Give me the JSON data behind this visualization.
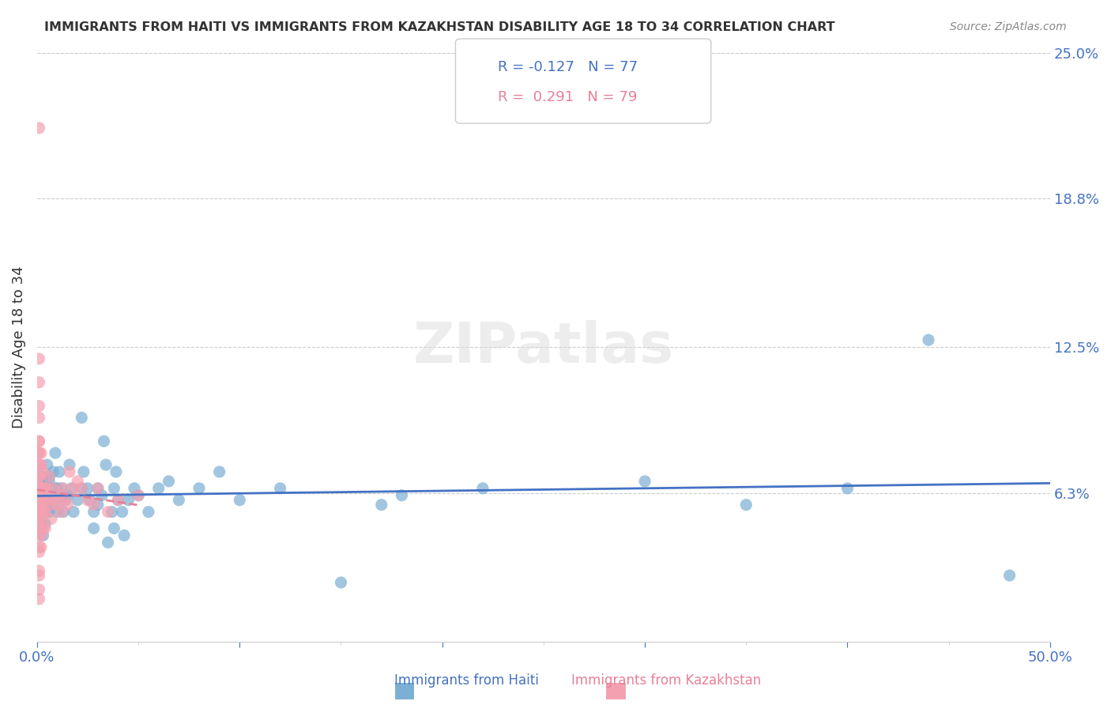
{
  "title": "IMMIGRANTS FROM HAITI VS IMMIGRANTS FROM KAZAKHSTAN DISABILITY AGE 18 TO 34 CORRELATION CHART",
  "source": "Source: ZipAtlas.com",
  "xlabel": "",
  "ylabel": "Disability Age 18 to 34",
  "xlim": [
    0,
    0.5
  ],
  "ylim": [
    0,
    0.25
  ],
  "xticks": [
    0.0,
    0.5
  ],
  "xticklabels": [
    "0.0%",
    "50.0%"
  ],
  "yticks_right": [
    0.0,
    0.063,
    0.125,
    0.188,
    0.25
  ],
  "yticklabels_right": [
    "",
    "6.3%",
    "12.5%",
    "18.8%",
    "25.0%"
  ],
  "legend_r_haiti": "-0.127",
  "legend_n_haiti": "77",
  "legend_r_kazakh": "0.291",
  "legend_n_kazakh": "79",
  "haiti_color": "#7BAFD4",
  "kazakh_color": "#F4A0B0",
  "haiti_line_color": "#4472C4",
  "kazakh_line_color": "#E88098",
  "watermark": "ZIPatlas",
  "background_color": "#FFFFFF",
  "haiti_x": [
    0.001,
    0.002,
    0.002,
    0.002,
    0.003,
    0.003,
    0.003,
    0.003,
    0.003,
    0.004,
    0.004,
    0.004,
    0.004,
    0.005,
    0.005,
    0.005,
    0.006,
    0.006,
    0.006,
    0.007,
    0.007,
    0.008,
    0.008,
    0.009,
    0.009,
    0.01,
    0.01,
    0.011,
    0.012,
    0.012,
    0.013,
    0.014,
    0.015,
    0.016,
    0.017,
    0.018,
    0.02,
    0.022,
    0.022,
    0.023,
    0.025,
    0.026,
    0.028,
    0.028,
    0.03,
    0.03,
    0.032,
    0.033,
    0.034,
    0.035,
    0.037,
    0.038,
    0.038,
    0.039,
    0.04,
    0.042,
    0.043,
    0.045,
    0.048,
    0.05,
    0.055,
    0.06,
    0.065,
    0.07,
    0.08,
    0.09,
    0.1,
    0.12,
    0.15,
    0.17,
    0.18,
    0.22,
    0.3,
    0.35,
    0.4,
    0.44,
    0.48
  ],
  "haiti_y": [
    0.063,
    0.07,
    0.05,
    0.055,
    0.055,
    0.06,
    0.045,
    0.065,
    0.07,
    0.058,
    0.05,
    0.065,
    0.06,
    0.055,
    0.065,
    0.075,
    0.068,
    0.055,
    0.07,
    0.065,
    0.06,
    0.058,
    0.072,
    0.065,
    0.08,
    0.065,
    0.055,
    0.072,
    0.06,
    0.065,
    0.055,
    0.06,
    0.062,
    0.075,
    0.065,
    0.055,
    0.06,
    0.095,
    0.065,
    0.072,
    0.065,
    0.06,
    0.055,
    0.048,
    0.065,
    0.058,
    0.062,
    0.085,
    0.075,
    0.042,
    0.055,
    0.065,
    0.048,
    0.072,
    0.06,
    0.055,
    0.045,
    0.06,
    0.065,
    0.062,
    0.055,
    0.065,
    0.068,
    0.06,
    0.065,
    0.072,
    0.06,
    0.065,
    0.025,
    0.058,
    0.062,
    0.065,
    0.068,
    0.058,
    0.065,
    0.128,
    0.028
  ],
  "kazakh_x": [
    0.001,
    0.001,
    0.001,
    0.001,
    0.001,
    0.001,
    0.001,
    0.001,
    0.001,
    0.001,
    0.001,
    0.001,
    0.001,
    0.001,
    0.001,
    0.001,
    0.001,
    0.001,
    0.001,
    0.001,
    0.001,
    0.001,
    0.001,
    0.001,
    0.001,
    0.001,
    0.001,
    0.001,
    0.001,
    0.001,
    0.001,
    0.001,
    0.001,
    0.001,
    0.001,
    0.001,
    0.002,
    0.002,
    0.002,
    0.002,
    0.002,
    0.002,
    0.002,
    0.002,
    0.002,
    0.002,
    0.003,
    0.003,
    0.003,
    0.003,
    0.003,
    0.003,
    0.004,
    0.004,
    0.004,
    0.004,
    0.005,
    0.005,
    0.006,
    0.007,
    0.007,
    0.008,
    0.009,
    0.01,
    0.011,
    0.012,
    0.013,
    0.014,
    0.015,
    0.016,
    0.018,
    0.02,
    0.022,
    0.025,
    0.028,
    0.03,
    0.035,
    0.04,
    0.05
  ],
  "kazakh_y": [
    0.055,
    0.06,
    0.065,
    0.07,
    0.075,
    0.08,
    0.085,
    0.055,
    0.05,
    0.045,
    0.04,
    0.06,
    0.065,
    0.058,
    0.048,
    0.038,
    0.03,
    0.028,
    0.022,
    0.018,
    0.06,
    0.065,
    0.07,
    0.058,
    0.052,
    0.11,
    0.12,
    0.1,
    0.095,
    0.085,
    0.075,
    0.07,
    0.08,
    0.065,
    0.055,
    0.218,
    0.06,
    0.065,
    0.055,
    0.045,
    0.04,
    0.052,
    0.058,
    0.065,
    0.075,
    0.08,
    0.055,
    0.065,
    0.06,
    0.072,
    0.048,
    0.055,
    0.065,
    0.055,
    0.048,
    0.062,
    0.065,
    0.06,
    0.07,
    0.058,
    0.052,
    0.065,
    0.06,
    0.058,
    0.062,
    0.055,
    0.065,
    0.06,
    0.058,
    0.072,
    0.065,
    0.068,
    0.065,
    0.06,
    0.058,
    0.065,
    0.055,
    0.06,
    0.062
  ]
}
